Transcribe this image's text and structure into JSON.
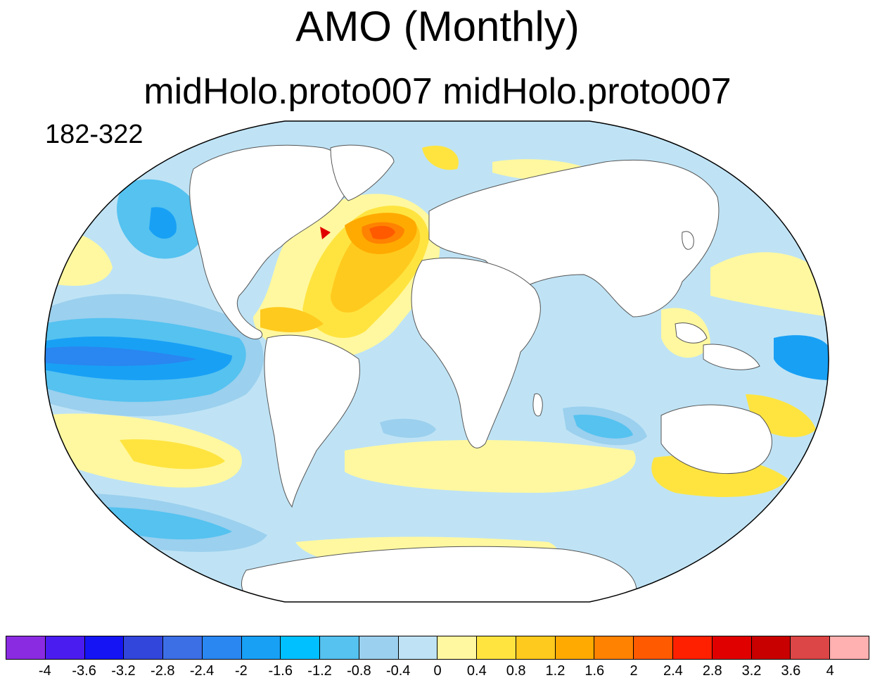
{
  "header": {
    "title": "AMO (Monthly)",
    "subtitle": "midHolo.proto007  midHolo.proto007",
    "period": "182-322"
  },
  "map": {
    "projection": "robinson",
    "ocean_base": "#bfe3f5",
    "land": "#ffffff"
  },
  "colorbar": {
    "colors": [
      "#8a2be2",
      "#4b1cf0",
      "#1414f5",
      "#3246dc",
      "#3c6ee6",
      "#2a86f0",
      "#18a0f5",
      "#00c0ff",
      "#55c2f0",
      "#9bd0ee",
      "#bfe3f5",
      "#fff8a0",
      "#ffe440",
      "#ffca1e",
      "#ffaa00",
      "#ff8200",
      "#ff5a00",
      "#ff2000",
      "#e00000",
      "#c80000",
      "#dc4646",
      "#ffb0b0"
    ],
    "labels": [
      "-4",
      "-3.6",
      "-3.2",
      "-2.8",
      "-2.4",
      "-2",
      "-1.6",
      "-1.2",
      "-0.8",
      "-0.4",
      "0",
      "0.4",
      "0.8",
      "1.2",
      "1.6",
      "2",
      "2.4",
      "2.8",
      "3.2",
      "3.6",
      "4"
    ]
  }
}
